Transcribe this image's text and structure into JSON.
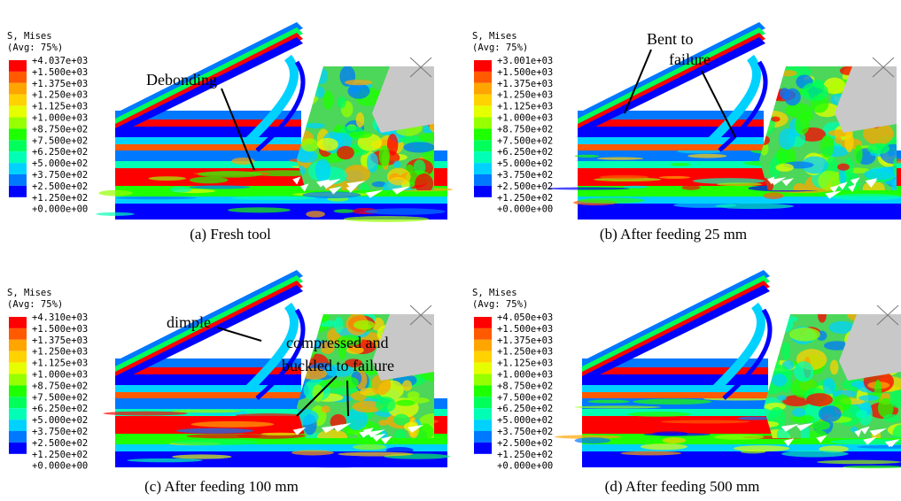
{
  "colormap": [
    "#ff0000",
    "#ff5a00",
    "#ffa500",
    "#ffd200",
    "#e6ff00",
    "#96ff00",
    "#1eff00",
    "#00ff5a",
    "#00ffb4",
    "#00d2ff",
    "#0078ff",
    "#0000ff"
  ],
  "panels": [
    {
      "legend_title": "S, Mises",
      "legend_subtitle": "(Avg: 75%)",
      "legend_labels": [
        "+4.037e+03",
        "+1.500e+03",
        "+1.375e+03",
        "+1.250e+03",
        "+1.125e+03",
        "+1.000e+03",
        "+8.750e+02",
        "+7.500e+02",
        "+6.250e+02",
        "+5.000e+02",
        "+3.750e+02",
        "+2.500e+02",
        "+1.250e+02",
        "+0.000e+00"
      ],
      "caption": "(a) Fresh tool",
      "annotations": [
        "Debonding"
      ]
    },
    {
      "legend_title": "S, Mises",
      "legend_subtitle": "(Avg: 75%)",
      "legend_labels": [
        "+3.001e+03",
        "+1.500e+03",
        "+1.375e+03",
        "+1.250e+03",
        "+1.125e+03",
        "+1.000e+03",
        "+8.750e+02",
        "+7.500e+02",
        "+6.250e+02",
        "+5.000e+02",
        "+3.750e+02",
        "+2.500e+02",
        "+1.250e+02",
        "+0.000e+00"
      ],
      "caption": "(b) After feeding 25 mm",
      "annotations": [
        "Bent to",
        "failure"
      ]
    },
    {
      "legend_title": "S, Mises",
      "legend_subtitle": "(Avg: 75%)",
      "legend_labels": [
        "+4.310e+03",
        "+1.500e+03",
        "+1.375e+03",
        "+1.250e+03",
        "+1.125e+03",
        "+1.000e+03",
        "+8.750e+02",
        "+7.500e+02",
        "+6.250e+02",
        "+5.000e+02",
        "+3.750e+02",
        "+2.500e+02",
        "+1.250e+02",
        "+0.000e+00"
      ],
      "caption": "(c) After feeding 100 mm",
      "annotations": [
        "dimple",
        "compressed and",
        "buckled to failure"
      ]
    },
    {
      "legend_title": "S, Mises",
      "legend_subtitle": "(Avg: 75%)",
      "legend_labels": [
        "+4.050e+03",
        "+1.500e+03",
        "+1.375e+03",
        "+1.250e+03",
        "+1.125e+03",
        "+1.000e+03",
        "+8.750e+02",
        "+7.500e+02",
        "+6.250e+02",
        "+5.000e+02",
        "+3.750e+02",
        "+2.500e+02",
        "+1.250e+02",
        "+0.000e+00"
      ],
      "caption": "(d) After feeding 500 mm",
      "annotations": []
    }
  ]
}
